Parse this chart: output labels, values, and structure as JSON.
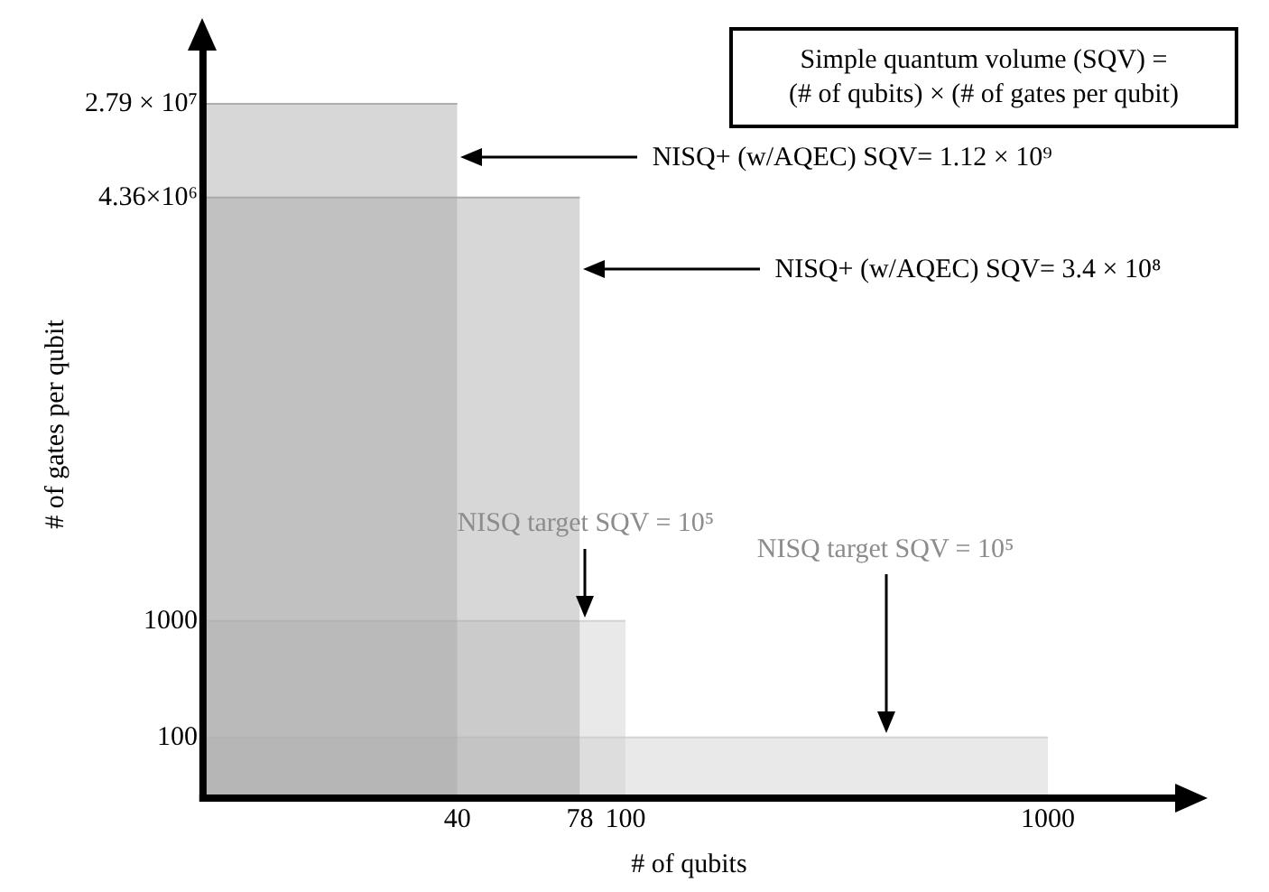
{
  "chart_data": {
    "type": "area",
    "xlabel": "# of qubits",
    "ylabel": "# of gates per qubit",
    "log": "xy",
    "xlim": [
      10,
      2000
    ],
    "ylim": [
      30,
      80000000
    ],
    "xticks": [
      40,
      78,
      100,
      1000
    ],
    "yticks": [
      100,
      1000,
      {
        "value": 4360000,
        "label": "4.36×10⁶"
      },
      {
        "value": 27900000,
        "label": "2.79 × 10⁷"
      }
    ],
    "series": [
      {
        "x": [
          10,
          40
        ],
        "values": [
          27900000,
          27900000
        ],
        "color": "#a6a6a6"
      },
      {
        "x": [
          10,
          78
        ],
        "values": [
          4360000,
          4360000
        ],
        "color": "#a6a6a6"
      },
      {
        "x": [
          10,
          100
        ],
        "values": [
          1000,
          1000
        ],
        "color": "#cfcfcf"
      },
      {
        "x": [
          10,
          1000
        ],
        "values": [
          100,
          100
        ],
        "color": "#cfcfcf"
      }
    ],
    "annotations": [
      "Simple quantum volume (SQV) =\n(# of qubits) × (# of gates per qubit)",
      "NISQ+ (w/AQEC) SQV= 1.12 × 10⁹",
      "NISQ+ (w/AQEC) SQV= 3.4 × 10⁸",
      "NISQ target SQV = 10⁵",
      "NISQ target SQV = 10⁵"
    ]
  }
}
